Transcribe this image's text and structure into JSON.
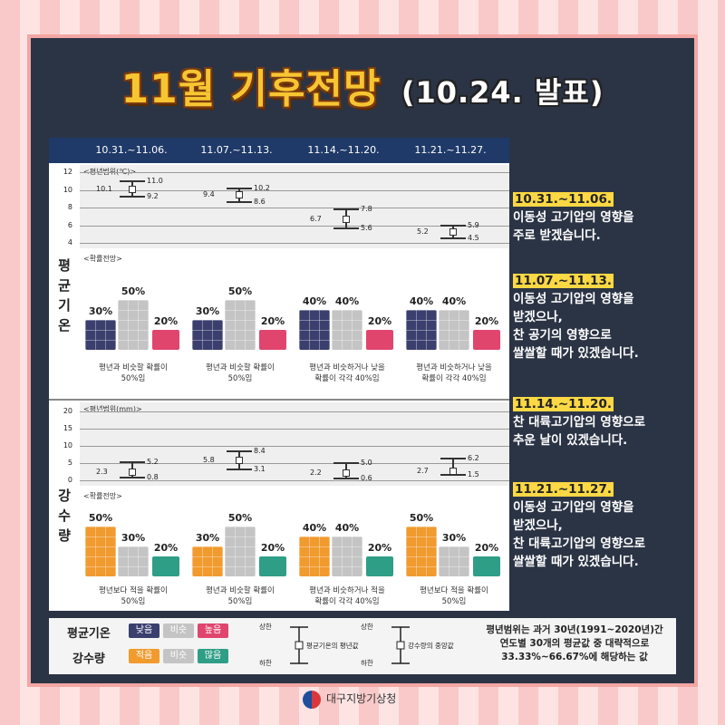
{
  "title": {
    "main": "11월 기후전망",
    "sub": "(10.24. 발표)"
  },
  "periods": [
    "10.31.~11.06.",
    "11.07.~11.13.",
    "11.14.~11.20.",
    "11.21.~11.27."
  ],
  "sections": {
    "temp": {
      "label_chars": [
        "평",
        "균",
        "기",
        "온"
      ],
      "range_note": "<평년범위(℃)>",
      "yticks": [
        "12",
        "10",
        "8",
        "6",
        "4"
      ],
      "prob_note": "<확률전망>",
      "ranges": [
        {
          "upper": "11.0",
          "mean": "10.1",
          "lower": "9.2"
        },
        {
          "upper": "10.2",
          "mean": "9.4",
          "lower": "8.6"
        },
        {
          "upper": "7.8",
          "mean": "6.7",
          "lower": "5.6"
        },
        {
          "upper": "5.9",
          "mean": "5.2",
          "lower": "4.5"
        }
      ],
      "probs": [
        {
          "low": "30%",
          "normal": "50%",
          "high": "20%",
          "caption1": "평년과 비슷할 확률이",
          "caption2": "50%임"
        },
        {
          "low": "30%",
          "normal": "50%",
          "high": "20%",
          "caption1": "평년과 비슷할 확률이",
          "caption2": "50%임"
        },
        {
          "low": "40%",
          "normal": "40%",
          "high": "20%",
          "caption1": "평년과 비슷하거나 낮을",
          "caption2": "확률이 각각 40%임"
        },
        {
          "low": "40%",
          "normal": "40%",
          "high": "20%",
          "caption1": "평년과 비슷하거나 낮을",
          "caption2": "확률이 각각 40%임"
        }
      ]
    },
    "rain": {
      "label_chars": [
        "강",
        "수",
        "량"
      ],
      "range_note": "<평년범위(mm)>",
      "yticks": [
        "20",
        "15",
        "10",
        "5",
        "0"
      ],
      "prob_note": "<확률전망>",
      "ranges": [
        {
          "upper": "5.2",
          "mean": "2.3",
          "lower": "0.8"
        },
        {
          "upper": "8.4",
          "mean": "5.8",
          "lower": "3.1"
        },
        {
          "upper": "5.0",
          "mean": "2.2",
          "lower": "0.6"
        },
        {
          "upper": "6.2",
          "mean": "2.7",
          "lower": "1.5"
        }
      ],
      "probs": [
        {
          "low": "50%",
          "normal": "30%",
          "high": "20%",
          "caption1": "평년보다 적을 확률이",
          "caption2": "50%임"
        },
        {
          "low": "30%",
          "normal": "50%",
          "high": "20%",
          "caption1": "평년과 비슷할 확률이",
          "caption2": "50%임"
        },
        {
          "low": "40%",
          "normal": "40%",
          "high": "20%",
          "caption1": "평년과 비슷하거나 적을",
          "caption2": "확률이 각각 40%임"
        },
        {
          "low": "50%",
          "normal": "30%",
          "high": "20%",
          "caption1": "평년보다 적을 확률이",
          "caption2": "50%임"
        }
      ]
    }
  },
  "side_notes": [
    {
      "date": "10.31.~11.06.",
      "lines": [
        "이동성 고기압의 영향을",
        "주로 받겠습니다."
      ]
    },
    {
      "date": "11.07.~11.13.",
      "lines": [
        "이동성 고기압의 영향을",
        "받겠으나,",
        "찬 공기의 영향으로",
        "쌀쌀할 때가 있겠습니다."
      ]
    },
    {
      "date": "11.14.~11.20.",
      "lines": [
        "찬 대륙고기압의 영향으로",
        "추운 날이 있겠습니다."
      ]
    },
    {
      "date": "11.21.~11.27.",
      "lines": [
        "이동성 고기압의 영향을",
        "받겠으나,",
        "찬 대륙고기압의 영향으로",
        "쌀쌀할 때가 있겠습니다."
      ]
    }
  ],
  "legend": {
    "temp_label": "평균기온",
    "temp_chips": [
      "낮음",
      "비슷",
      "높음"
    ],
    "rain_label": "강수량",
    "rain_chips": [
      "적음",
      "비슷",
      "많음"
    ],
    "diag1": {
      "upper": "상한",
      "lower": "하한",
      "desc": "평균기온의 평년값"
    },
    "diag2": {
      "upper": "상한",
      "lower": "하한",
      "desc": "강수량의 중앙값"
    },
    "note_lines": [
      "평년범위는 과거 30년(1991~2020년)간",
      "연도별 30개의 평균값 중 대략적으로",
      "33.33%~66.67%에 해당하는 값"
    ]
  },
  "colors": {
    "temp_low": "#3a3f6e",
    "temp_normal": "#c4c4c4",
    "temp_high": "#e0456e",
    "rain_low": "#f19a2e",
    "rain_normal": "#c4c4c4",
    "rain_high": "#2e9e86",
    "title": "#f7c531",
    "highlight": "#fbd844"
  },
  "footer": {
    "agency": "대구지방기상청"
  }
}
